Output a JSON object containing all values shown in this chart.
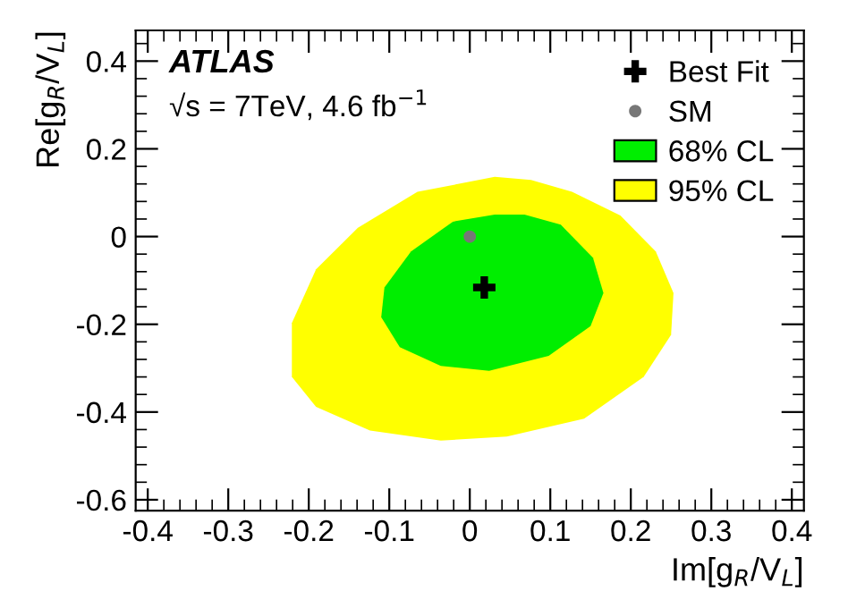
{
  "chart_data": {
    "type": "area",
    "xlabel": "Im[g$_{R}$/V$_{L}$]",
    "ylabel": "Re[g$_{R}$/V$_{L}$]",
    "xlim": [
      -0.415,
      0.415
    ],
    "ylim": [
      -0.625,
      0.47
    ],
    "xticks": [
      -0.4,
      -0.3,
      -0.2,
      -0.1,
      0,
      0.1,
      0.2,
      0.3,
      0.4
    ],
    "yticks": [
      -0.6,
      -0.4,
      -0.2,
      0,
      0.2,
      0.4
    ],
    "grid": false,
    "legend": "top right",
    "annotations": [
      "ATLAS",
      "√s = 7TeV, 4.6 fb$^{−1}$"
    ],
    "series": [
      {
        "name": "Best Fit",
        "type": "scatter",
        "marker": "cross",
        "color": "#000000",
        "x": [
          0.018
        ],
        "values": [
          -0.116
        ]
      },
      {
        "name": "SM",
        "type": "scatter",
        "marker": "circle",
        "color": "#777777",
        "x": [
          0.0
        ],
        "values": [
          0.0
        ]
      },
      {
        "name": "68% CL",
        "color": "#00ee00",
        "x": [
          0.031,
          -0.021,
          -0.073,
          -0.106,
          -0.11,
          -0.087,
          -0.036,
          0.024,
          0.098,
          0.15,
          0.166,
          0.153,
          0.113,
          0.068
        ],
        "values": [
          0.05,
          0.034,
          -0.034,
          -0.116,
          -0.184,
          -0.252,
          -0.295,
          -0.306,
          -0.272,
          -0.204,
          -0.129,
          -0.048,
          0.027,
          0.05
        ]
      },
      {
        "name": "95% CL",
        "color": "#ffff00",
        "x": [
          0.031,
          -0.065,
          -0.139,
          -0.191,
          -0.221,
          -0.221,
          -0.191,
          -0.124,
          -0.036,
          0.046,
          0.142,
          0.216,
          0.25,
          0.253,
          0.231,
          0.187,
          0.127,
          0.076
        ],
        "values": [
          0.136,
          0.102,
          0.02,
          -0.075,
          -0.197,
          -0.32,
          -0.388,
          -0.442,
          -0.465,
          -0.456,
          -0.415,
          -0.32,
          -0.224,
          -0.129,
          -0.034,
          0.048,
          0.102,
          0.129
        ]
      }
    ]
  }
}
